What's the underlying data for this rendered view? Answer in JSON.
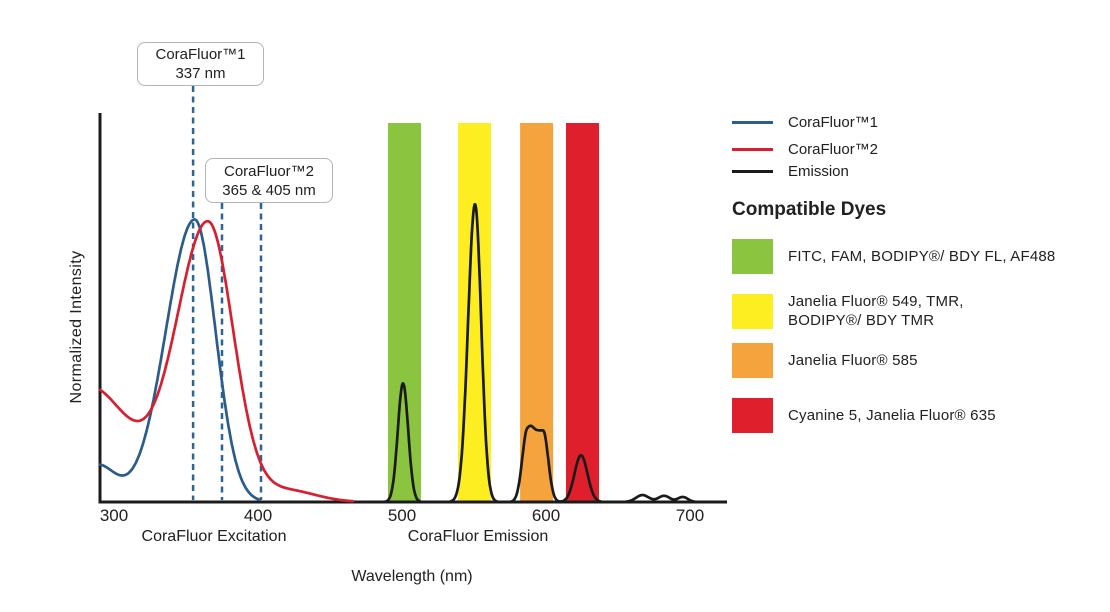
{
  "chart_data": {
    "type": "line",
    "title": "",
    "x_ticks": [
      300,
      400,
      500,
      600,
      700
    ],
    "axis": {
      "ticks": [
        "300",
        "400",
        "500",
        "600",
        "700"
      ],
      "x_label": "Wavelength (nm)",
      "y_label": "Normalized Intensity",
      "section_labels": [
        "CoraFluor Excitation",
        "CoraFluor Emission"
      ]
    },
    "bands": [
      {
        "name": "green",
        "color": "#8bc540",
        "nm": [
          490.3,
          513.2
        ]
      },
      {
        "name": "yellow",
        "color": "#fcee21",
        "nm": [
          538.9,
          561.8
        ]
      },
      {
        "name": "orange",
        "color": "#f5a43d",
        "nm": [
          582.0,
          604.9
        ]
      },
      {
        "name": "red",
        "color": "#e01f2c",
        "nm": [
          613.9,
          636.8
        ]
      }
    ],
    "series": [
      {
        "name": "CoraFluor™1",
        "role": "excitation",
        "color": "#2b5c8c",
        "range": [
          290.4,
          401
        ],
        "peaks": [
          {
            "nm": 356,
            "intensity": 0.73
          }
        ],
        "model": [
          {
            "mu": 356,
            "sigL": 20,
            "sigR": 14.5,
            "A": 0.73
          },
          {
            "mu": 288,
            "sig": 13,
            "A": 0.095
          }
        ]
      },
      {
        "name": "CoraFluor™2",
        "role": "excitation",
        "color": "#d6202f",
        "range": [
          290.4,
          466
        ],
        "peaks": [
          {
            "nm": 365,
            "intensity": 0.72
          }
        ],
        "model": [
          {
            "mu": 365.3,
            "sigL": 22,
            "sigR": 17.5,
            "A": 0.72
          },
          {
            "mu": 282,
            "sig": 29,
            "A": 0.3
          },
          {
            "mu": 420,
            "sig": 20,
            "A": 0.03
          }
        ]
      },
      {
        "name": "Emission",
        "role": "emission",
        "color": "#1b1b1b",
        "range": [
          482,
          712
        ],
        "peaks": [
          {
            "nm": 501,
            "intensity": 0.31
          },
          {
            "nm": 551,
            "intensity": 0.77
          },
          {
            "nm": 593,
            "intensity": 0.19
          },
          {
            "nm": 624,
            "intensity": 0.12
          },
          {
            "nm": 667,
            "intensity": 0.018
          },
          {
            "nm": 682,
            "intensity": 0.016
          },
          {
            "nm": 695,
            "intensity": 0.013
          }
        ],
        "model": [
          {
            "mu": 500.7,
            "sig": 3.6,
            "A": 0.307
          },
          {
            "mu": 550.7,
            "sigL": 4.8,
            "sigR": 4.3,
            "A": 0.77
          },
          {
            "mu": 592.5,
            "sig": 3.5,
            "flat": 5.5,
            "A": 0.185
          },
          {
            "mu": 589.3,
            "sig": 2,
            "A": 0.012
          },
          {
            "mu": 624.3,
            "sig": 4.5,
            "A": 0.121
          },
          {
            "mu": 667,
            "sig": 4.5,
            "A": 0.018
          },
          {
            "mu": 682,
            "sig": 4,
            "A": 0.016
          },
          {
            "mu": 695,
            "sig": 3.5,
            "A": 0.013
          }
        ]
      }
    ],
    "annotations": {
      "dash_color": "#2e6396",
      "boxes": [
        {
          "line1": "CoraFluor™1",
          "line2": "337 nm",
          "dashed_nm": [
            354.9
          ]
        },
        {
          "line1": "CoraFluor™2",
          "line2": "365 & 405 nm",
          "dashed_nm": [
            375.0,
            402.1
          ]
        }
      ]
    }
  },
  "legend": {
    "items": [
      {
        "label": "CoraFluor™1",
        "color": "#2b5c8c"
      },
      {
        "label": "CoraFluor™2",
        "color": "#d6202f"
      },
      {
        "label": "Emission",
        "color": "#1b1b1b"
      }
    ]
  },
  "compatible_dyes": {
    "heading": "Compatible Dyes",
    "items": [
      {
        "color": "#8bc540",
        "label": "FITC, FAM, BODIPY®/ BDY FL, AF488"
      },
      {
        "color": "#fcee21",
        "label": "Janelia Fluor® 549, TMR,\nBODIPY®/ BDY TMR"
      },
      {
        "color": "#f5a43d",
        "label": "Janelia Fluor® 585"
      },
      {
        "color": "#e01f2c",
        "label": "Cyanine 5, Janelia Fluor® 635"
      }
    ]
  }
}
